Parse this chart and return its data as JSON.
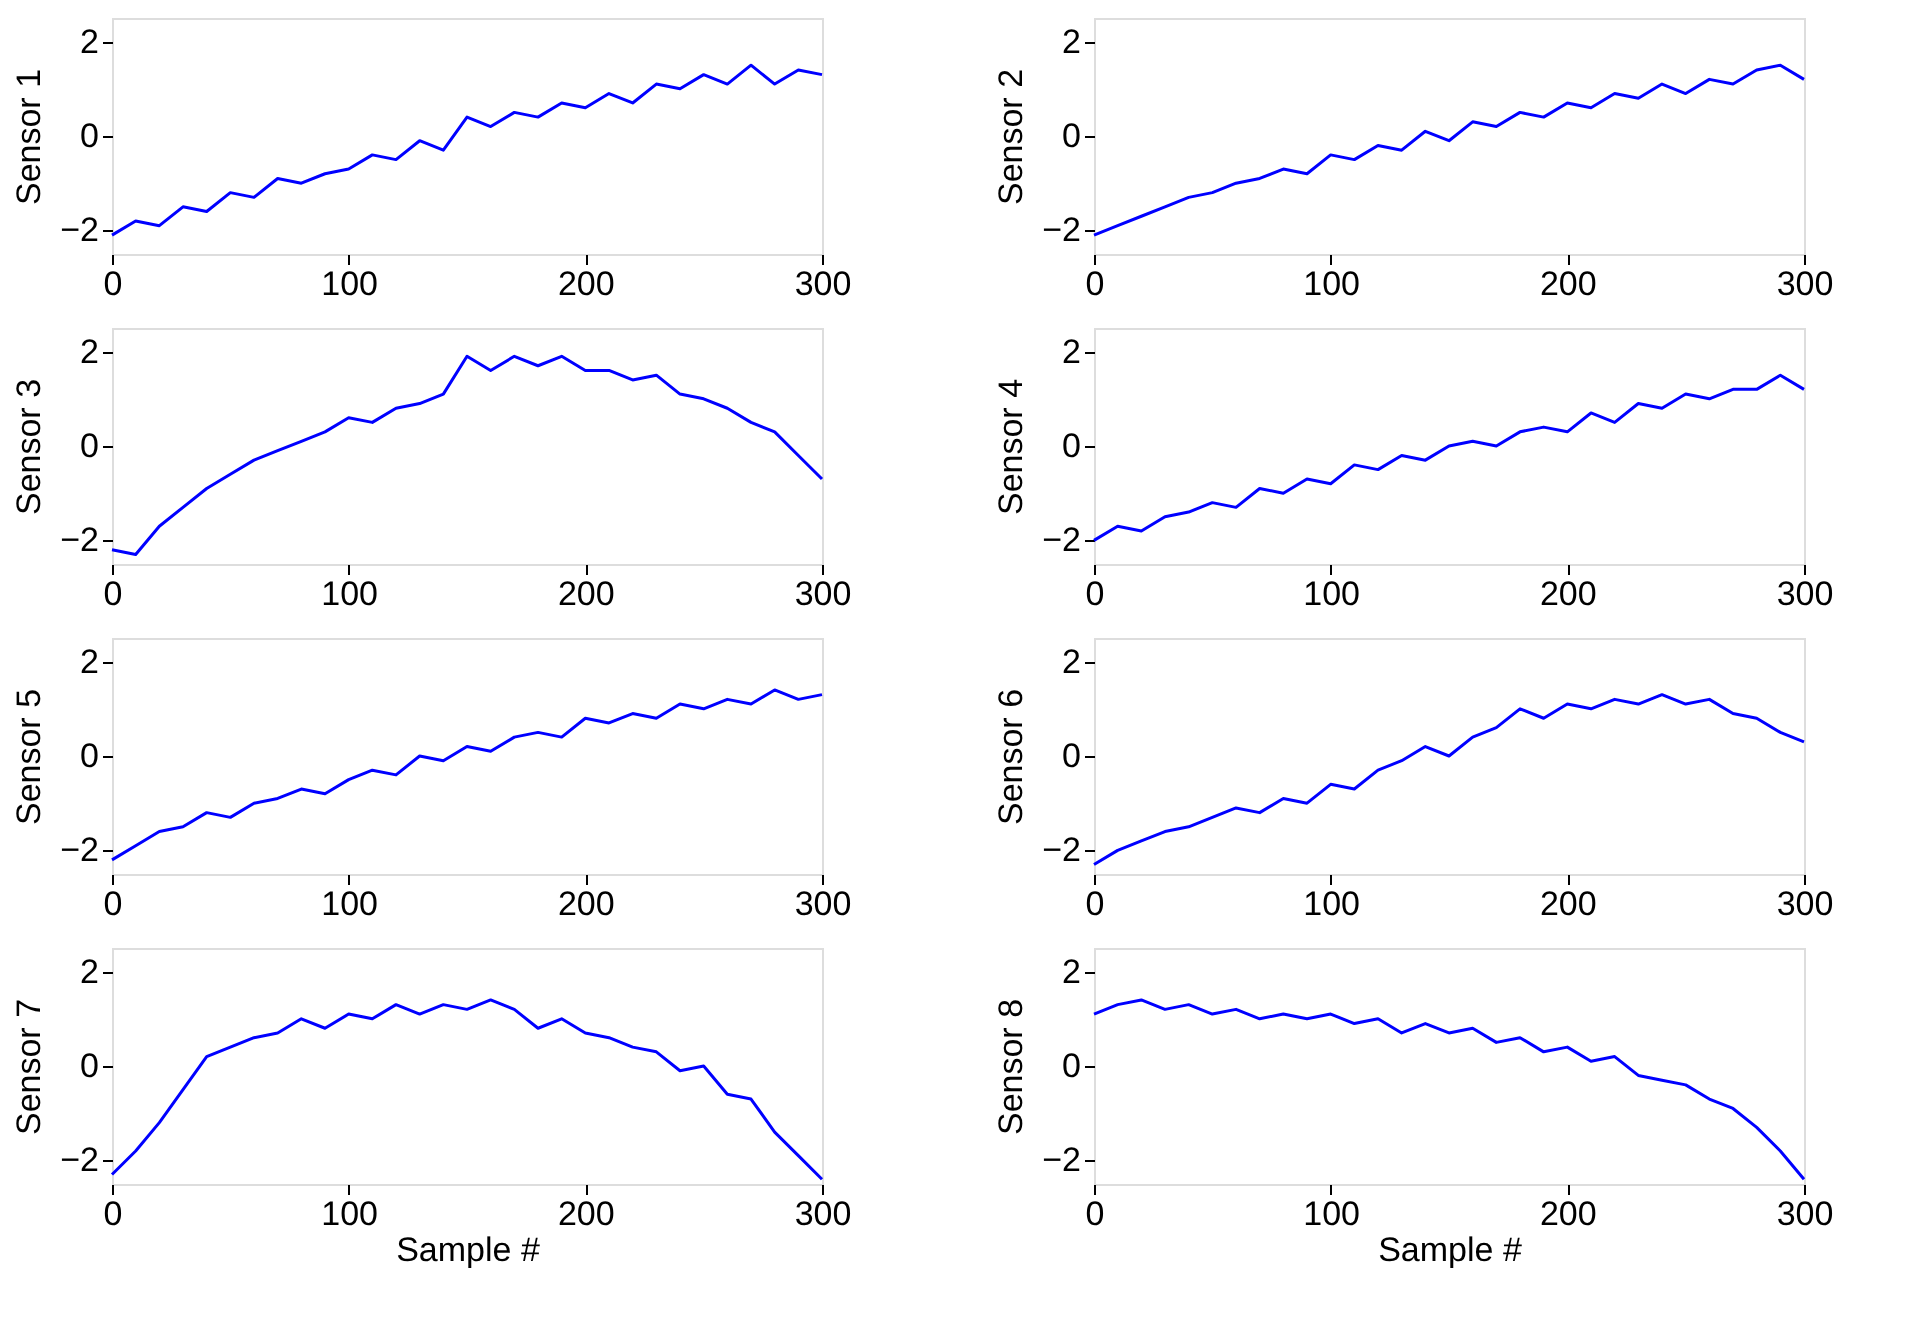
{
  "chart_data": [
    {
      "type": "line",
      "ylabel": "Sensor 1",
      "x": [
        0,
        10,
        20,
        30,
        40,
        50,
        60,
        70,
        80,
        90,
        100,
        110,
        120,
        130,
        140,
        150,
        160,
        170,
        180,
        190,
        200,
        210,
        220,
        230,
        240,
        250,
        260,
        270,
        280,
        290,
        300
      ],
      "xlim": [
        0,
        300
      ],
      "xticks": [
        0,
        100,
        200,
        300
      ],
      "ylim": [
        -2.5,
        2.5
      ],
      "yticks": [
        -2,
        0,
        2
      ],
      "series": [
        {
          "color": "#0000ff",
          "values": [
            -2.1,
            -1.8,
            -1.9,
            -1.5,
            -1.6,
            -1.2,
            -1.3,
            -0.9,
            -1.0,
            -0.8,
            -0.7,
            -0.4,
            -0.5,
            -0.1,
            -0.3,
            0.4,
            0.2,
            0.5,
            0.4,
            0.7,
            0.6,
            0.9,
            0.7,
            1.1,
            1.0,
            1.3,
            1.1,
            1.5,
            1.1,
            1.4,
            1.3
          ]
        }
      ]
    },
    {
      "type": "line",
      "ylabel": "Sensor 2",
      "x": [
        0,
        10,
        20,
        30,
        40,
        50,
        60,
        70,
        80,
        90,
        100,
        110,
        120,
        130,
        140,
        150,
        160,
        170,
        180,
        190,
        200,
        210,
        220,
        230,
        240,
        250,
        260,
        270,
        280,
        290,
        300
      ],
      "xlim": [
        0,
        300
      ],
      "xticks": [
        0,
        100,
        200,
        300
      ],
      "ylim": [
        -2.5,
        2.5
      ],
      "yticks": [
        -2,
        0,
        2
      ],
      "series": [
        {
          "color": "#0000ff",
          "values": [
            -2.1,
            -1.9,
            -1.7,
            -1.5,
            -1.3,
            -1.2,
            -1.0,
            -0.9,
            -0.7,
            -0.8,
            -0.4,
            -0.5,
            -0.2,
            -0.3,
            0.1,
            -0.1,
            0.3,
            0.2,
            0.5,
            0.4,
            0.7,
            0.6,
            0.9,
            0.8,
            1.1,
            0.9,
            1.2,
            1.1,
            1.4,
            1.5,
            1.2
          ]
        }
      ]
    },
    {
      "type": "line",
      "ylabel": "Sensor 3",
      "x": [
        0,
        10,
        20,
        30,
        40,
        50,
        60,
        70,
        80,
        90,
        100,
        110,
        120,
        130,
        140,
        150,
        160,
        170,
        180,
        190,
        200,
        210,
        220,
        230,
        240,
        250,
        260,
        270,
        280,
        290,
        300
      ],
      "xlim": [
        0,
        300
      ],
      "xticks": [
        0,
        100,
        200,
        300
      ],
      "ylim": [
        -2.5,
        2.5
      ],
      "yticks": [
        -2,
        0,
        2
      ],
      "series": [
        {
          "color": "#0000ff",
          "values": [
            -2.2,
            -2.3,
            -1.7,
            -1.3,
            -0.9,
            -0.6,
            -0.3,
            -0.1,
            0.1,
            0.3,
            0.6,
            0.5,
            0.8,
            0.9,
            1.1,
            1.9,
            1.6,
            1.9,
            1.7,
            1.9,
            1.6,
            1.6,
            1.4,
            1.5,
            1.1,
            1.0,
            0.8,
            0.5,
            0.3,
            -0.2,
            -0.7
          ]
        }
      ]
    },
    {
      "type": "line",
      "ylabel": "Sensor 4",
      "x": [
        0,
        10,
        20,
        30,
        40,
        50,
        60,
        70,
        80,
        90,
        100,
        110,
        120,
        130,
        140,
        150,
        160,
        170,
        180,
        190,
        200,
        210,
        220,
        230,
        240,
        250,
        260,
        270,
        280,
        290,
        300
      ],
      "xlim": [
        0,
        300
      ],
      "xticks": [
        0,
        100,
        200,
        300
      ],
      "ylim": [
        -2.5,
        2.5
      ],
      "yticks": [
        -2,
        0,
        2
      ],
      "series": [
        {
          "color": "#0000ff",
          "values": [
            -2.0,
            -1.7,
            -1.8,
            -1.5,
            -1.4,
            -1.2,
            -1.3,
            -0.9,
            -1.0,
            -0.7,
            -0.8,
            -0.4,
            -0.5,
            -0.2,
            -0.3,
            0.0,
            0.1,
            0.0,
            0.3,
            0.4,
            0.3,
            0.7,
            0.5,
            0.9,
            0.8,
            1.1,
            1.0,
            1.2,
            1.2,
            1.5,
            1.2
          ]
        }
      ]
    },
    {
      "type": "line",
      "ylabel": "Sensor 5",
      "x": [
        0,
        10,
        20,
        30,
        40,
        50,
        60,
        70,
        80,
        90,
        100,
        110,
        120,
        130,
        140,
        150,
        160,
        170,
        180,
        190,
        200,
        210,
        220,
        230,
        240,
        250,
        260,
        270,
        280,
        290,
        300
      ],
      "xlim": [
        0,
        300
      ],
      "xticks": [
        0,
        100,
        200,
        300
      ],
      "ylim": [
        -2.5,
        2.5
      ],
      "yticks": [
        -2,
        0,
        2
      ],
      "series": [
        {
          "color": "#0000ff",
          "values": [
            -2.2,
            -1.9,
            -1.6,
            -1.5,
            -1.2,
            -1.3,
            -1.0,
            -0.9,
            -0.7,
            -0.8,
            -0.5,
            -0.3,
            -0.4,
            0.0,
            -0.1,
            0.2,
            0.1,
            0.4,
            0.5,
            0.4,
            0.8,
            0.7,
            0.9,
            0.8,
            1.1,
            1.0,
            1.2,
            1.1,
            1.4,
            1.2,
            1.3
          ]
        }
      ]
    },
    {
      "type": "line",
      "ylabel": "Sensor 6",
      "x": [
        0,
        10,
        20,
        30,
        40,
        50,
        60,
        70,
        80,
        90,
        100,
        110,
        120,
        130,
        140,
        150,
        160,
        170,
        180,
        190,
        200,
        210,
        220,
        230,
        240,
        250,
        260,
        270,
        280,
        290,
        300
      ],
      "xlim": [
        0,
        300
      ],
      "xticks": [
        0,
        100,
        200,
        300
      ],
      "ylim": [
        -2.5,
        2.5
      ],
      "yticks": [
        -2,
        0,
        2
      ],
      "series": [
        {
          "color": "#0000ff",
          "values": [
            -2.3,
            -2.0,
            -1.8,
            -1.6,
            -1.5,
            -1.3,
            -1.1,
            -1.2,
            -0.9,
            -1.0,
            -0.6,
            -0.7,
            -0.3,
            -0.1,
            0.2,
            0.0,
            0.4,
            0.6,
            1.0,
            0.8,
            1.1,
            1.0,
            1.2,
            1.1,
            1.3,
            1.1,
            1.2,
            0.9,
            0.8,
            0.5,
            0.3
          ]
        }
      ]
    },
    {
      "type": "line",
      "ylabel": "Sensor 7",
      "xlabel": "Sample #",
      "x": [
        0,
        10,
        20,
        30,
        40,
        50,
        60,
        70,
        80,
        90,
        100,
        110,
        120,
        130,
        140,
        150,
        160,
        170,
        180,
        190,
        200,
        210,
        220,
        230,
        240,
        250,
        260,
        270,
        280,
        290,
        300
      ],
      "xlim": [
        0,
        300
      ],
      "xticks": [
        0,
        100,
        200,
        300
      ],
      "ylim": [
        -2.5,
        2.5
      ],
      "yticks": [
        -2,
        0,
        2
      ],
      "series": [
        {
          "color": "#0000ff",
          "values": [
            -2.3,
            -1.8,
            -1.2,
            -0.5,
            0.2,
            0.4,
            0.6,
            0.7,
            1.0,
            0.8,
            1.1,
            1.0,
            1.3,
            1.1,
            1.3,
            1.2,
            1.4,
            1.2,
            0.8,
            1.0,
            0.7,
            0.6,
            0.4,
            0.3,
            -0.1,
            0.0,
            -0.6,
            -0.7,
            -1.4,
            -1.9,
            -2.4
          ]
        }
      ]
    },
    {
      "type": "line",
      "ylabel": "Sensor 8",
      "xlabel": "Sample #",
      "x": [
        0,
        10,
        20,
        30,
        40,
        50,
        60,
        70,
        80,
        90,
        100,
        110,
        120,
        130,
        140,
        150,
        160,
        170,
        180,
        190,
        200,
        210,
        220,
        230,
        240,
        250,
        260,
        270,
        280,
        290,
        300
      ],
      "xlim": [
        0,
        300
      ],
      "xticks": [
        0,
        100,
        200,
        300
      ],
      "ylim": [
        -2.5,
        2.5
      ],
      "yticks": [
        -2,
        0,
        2
      ],
      "series": [
        {
          "color": "#0000ff",
          "values": [
            1.1,
            1.3,
            1.4,
            1.2,
            1.3,
            1.1,
            1.2,
            1.0,
            1.1,
            1.0,
            1.1,
            0.9,
            1.0,
            0.7,
            0.9,
            0.7,
            0.8,
            0.5,
            0.6,
            0.3,
            0.4,
            0.1,
            0.2,
            -0.2,
            -0.3,
            -0.4,
            -0.7,
            -0.9,
            -1.3,
            -1.8,
            -2.4
          ]
        }
      ]
    }
  ]
}
